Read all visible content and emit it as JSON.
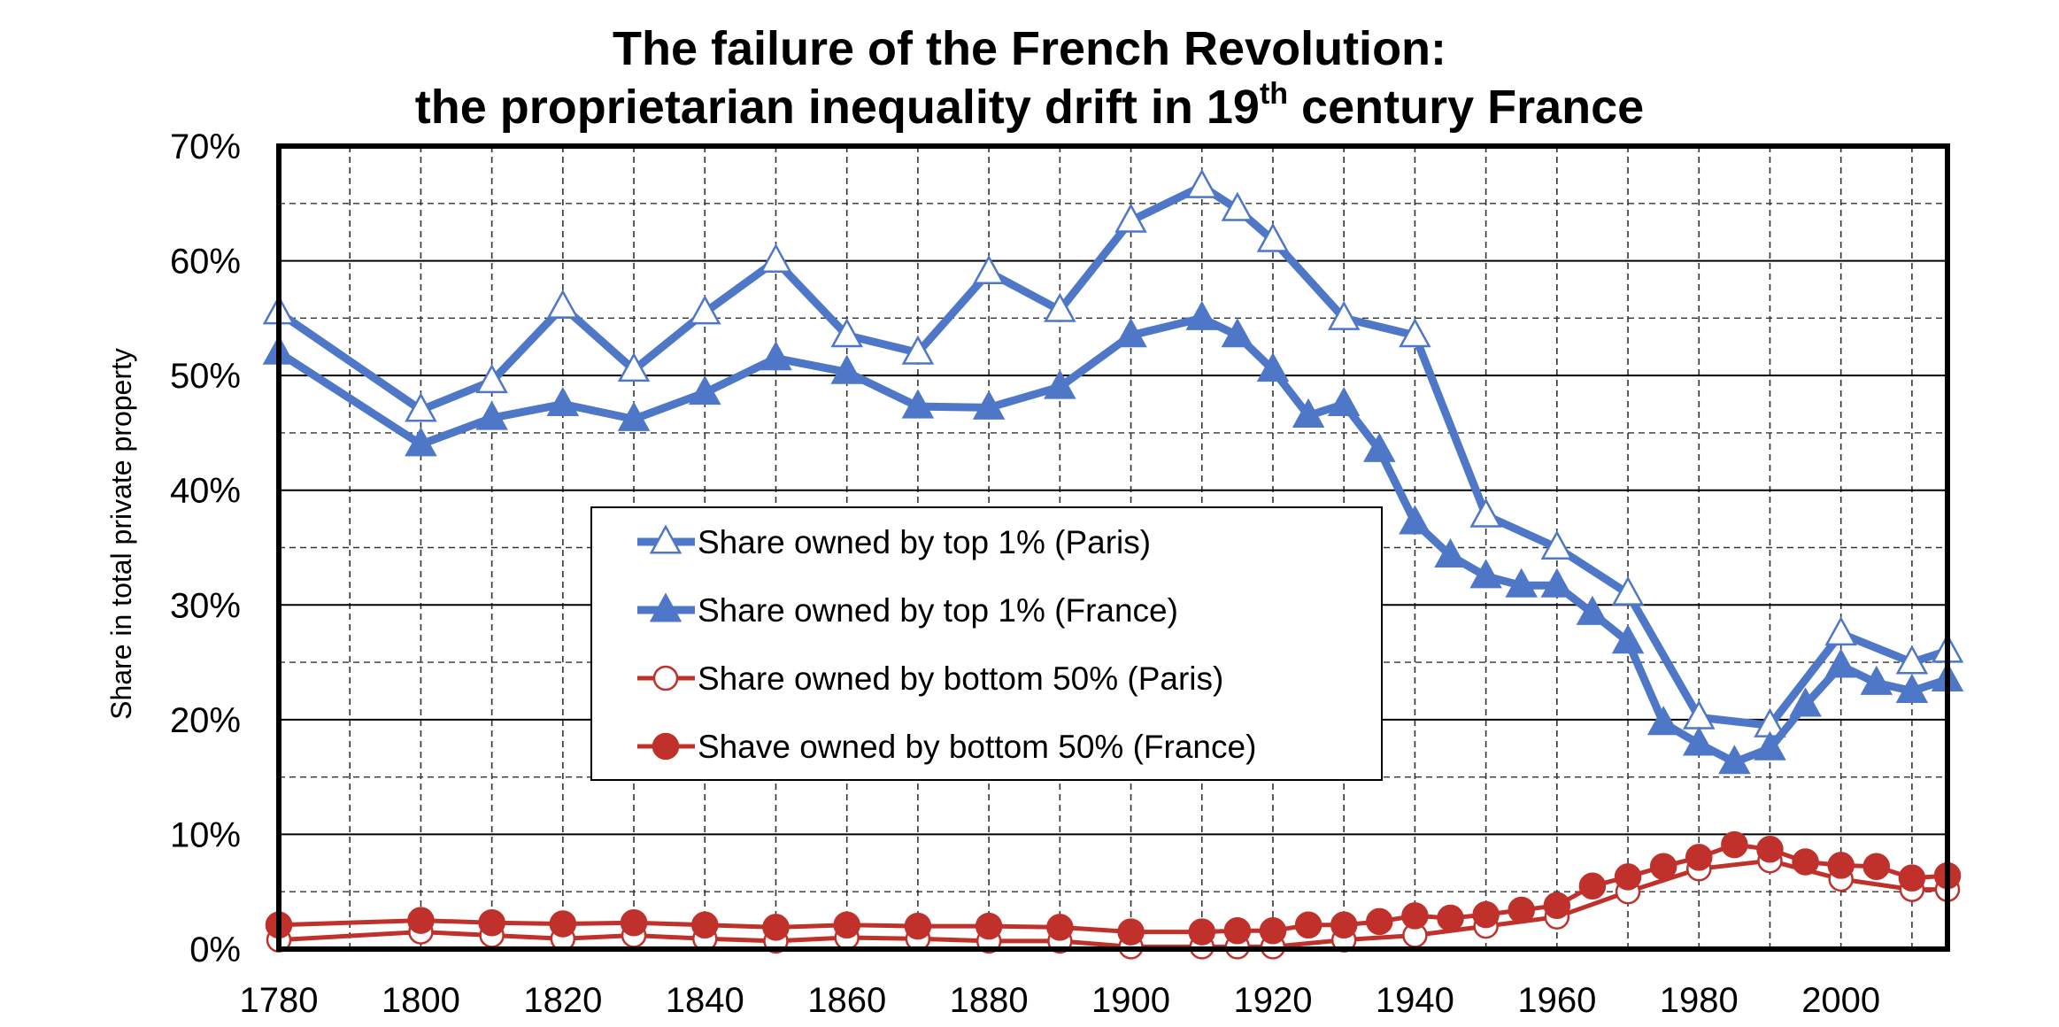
{
  "chart_data": {
    "type": "line",
    "title_line1": "The failure of the French Revolution:",
    "title_line2_pre": "the proprietarian inequality drift in 19",
    "title_line2_sup": "th",
    "title_line2_post": " century France",
    "xlabel": "",
    "ylabel": "Share in total private property",
    "xlim": [
      1780,
      2015
    ],
    "ylim": [
      0,
      70
    ],
    "x_ticks": [
      "1780",
      "1800",
      "1820",
      "1840",
      "1860",
      "1880",
      "1900",
      "1920",
      "1940",
      "1960",
      "1980",
      "2000"
    ],
    "y_ticks": [
      "0%",
      "10%",
      "20%",
      "30%",
      "40%",
      "50%",
      "60%",
      "70%"
    ],
    "grid": true,
    "legend_position": "center-left",
    "series": [
      {
        "name": "Share owned by top 1% (Paris)",
        "color": "#4f77c8",
        "marker": "triangle-open",
        "points": [
          [
            1780,
            55.5
          ],
          [
            1800,
            47
          ],
          [
            1810,
            49.5
          ],
          [
            1820,
            56
          ],
          [
            1830,
            50.5
          ],
          [
            1840,
            55.5
          ],
          [
            1850,
            60
          ],
          [
            1860,
            53.5
          ],
          [
            1870,
            52
          ],
          [
            1880,
            59
          ],
          [
            1890,
            55.7
          ],
          [
            1900,
            63.5
          ],
          [
            1910,
            66.5
          ],
          [
            1915,
            64.5
          ],
          [
            1920,
            61.8
          ],
          [
            1930,
            55
          ],
          [
            1940,
            53.5
          ],
          [
            1950,
            37.8
          ],
          [
            1960,
            35
          ],
          [
            1970,
            31
          ],
          [
            1980,
            20.2
          ],
          [
            1990,
            19.5
          ],
          [
            2000,
            27.5
          ],
          [
            2010,
            25
          ],
          [
            2015,
            26
          ]
        ]
      },
      {
        "name": "Share owned by top 1% (France)",
        "color": "#4f77c8",
        "marker": "triangle-filled",
        "points": [
          [
            1780,
            52
          ],
          [
            1800,
            44
          ],
          [
            1810,
            46.3
          ],
          [
            1820,
            47.5
          ],
          [
            1830,
            46.2
          ],
          [
            1840,
            48.5
          ],
          [
            1850,
            51.5
          ],
          [
            1860,
            50.3
          ],
          [
            1870,
            47.3
          ],
          [
            1880,
            47.2
          ],
          [
            1890,
            49
          ],
          [
            1900,
            53.5
          ],
          [
            1910,
            55
          ],
          [
            1915,
            53.5
          ],
          [
            1920,
            50.5
          ],
          [
            1925,
            46.5
          ],
          [
            1930,
            47.5
          ],
          [
            1935,
            43.5
          ],
          [
            1940,
            37.2
          ],
          [
            1945,
            34.3
          ],
          [
            1950,
            32.5
          ],
          [
            1955,
            31.7
          ],
          [
            1960,
            31.7
          ],
          [
            1965,
            29.3
          ],
          [
            1970,
            26.8
          ],
          [
            1975,
            19.7
          ],
          [
            1980,
            17.9
          ],
          [
            1985,
            16.3
          ],
          [
            1990,
            17.5
          ],
          [
            1995,
            21.3
          ],
          [
            2000,
            24.7
          ],
          [
            2005,
            23.2
          ],
          [
            2010,
            22.5
          ],
          [
            2015,
            23.5
          ]
        ]
      },
      {
        "name": "Share owned by bottom 50% (Paris)",
        "color": "#c0312b",
        "marker": "circle-open",
        "points": [
          [
            1780,
            0.8
          ],
          [
            1800,
            1.5
          ],
          [
            1810,
            1.2
          ],
          [
            1820,
            0.9
          ],
          [
            1830,
            1.2
          ],
          [
            1840,
            0.9
          ],
          [
            1850,
            0.7
          ],
          [
            1860,
            1.0
          ],
          [
            1870,
            0.9
          ],
          [
            1880,
            0.7
          ],
          [
            1890,
            0.7
          ],
          [
            1900,
            0.2
          ],
          [
            1910,
            0.2
          ],
          [
            1915,
            0.2
          ],
          [
            1920,
            0.2
          ],
          [
            1930,
            0.8
          ],
          [
            1940,
            1.2
          ],
          [
            1950,
            2.0
          ],
          [
            1960,
            2.8
          ],
          [
            1970,
            5.0
          ],
          [
            1980,
            7.0
          ],
          [
            1990,
            7.7
          ],
          [
            2000,
            6.1
          ],
          [
            2010,
            5.2
          ],
          [
            2015,
            5.2
          ]
        ]
      },
      {
        "name": "Shave owned by bottom 50% (France)",
        "color": "#c0312b",
        "marker": "circle-filled",
        "points": [
          [
            1780,
            2.1
          ],
          [
            1800,
            2.5
          ],
          [
            1810,
            2.3
          ],
          [
            1820,
            2.2
          ],
          [
            1830,
            2.3
          ],
          [
            1840,
            2.1
          ],
          [
            1850,
            1.9
          ],
          [
            1860,
            2.1
          ],
          [
            1870,
            2.0
          ],
          [
            1880,
            2.0
          ],
          [
            1890,
            1.9
          ],
          [
            1900,
            1.5
          ],
          [
            1910,
            1.5
          ],
          [
            1915,
            1.6
          ],
          [
            1920,
            1.6
          ],
          [
            1925,
            2.1
          ],
          [
            1930,
            2.1
          ],
          [
            1935,
            2.4
          ],
          [
            1940,
            2.9
          ],
          [
            1945,
            2.7
          ],
          [
            1950,
            3.0
          ],
          [
            1955,
            3.4
          ],
          [
            1960,
            3.8
          ],
          [
            1965,
            5.5
          ],
          [
            1970,
            6.3
          ],
          [
            1975,
            7.2
          ],
          [
            1980,
            8.0
          ],
          [
            1985,
            9.1
          ],
          [
            1990,
            8.7
          ],
          [
            1995,
            7.6
          ],
          [
            2000,
            7.3
          ],
          [
            2005,
            7.2
          ],
          [
            2010,
            6.2
          ],
          [
            2015,
            6.4
          ]
        ]
      }
    ]
  }
}
